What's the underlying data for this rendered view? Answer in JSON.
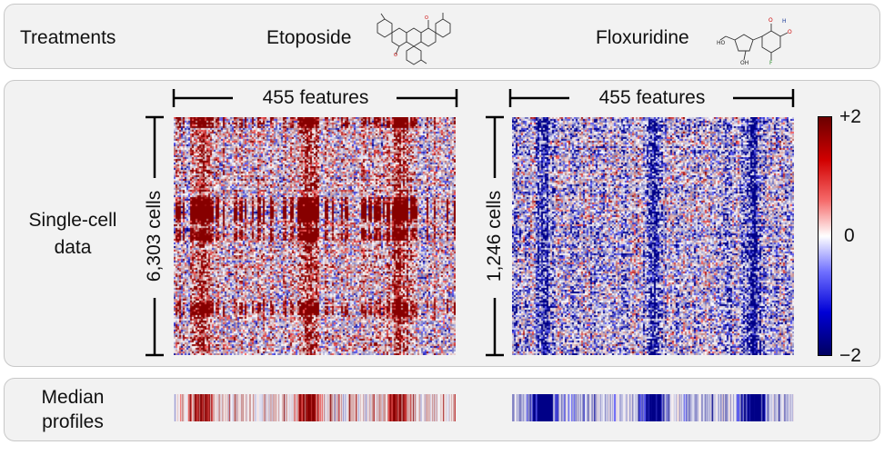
{
  "header": {
    "treatments_label": "Treatments",
    "drug_1": "Etoposide",
    "drug_2": "Floxuridine"
  },
  "single_cell": {
    "row_label_line1": "Single-cell",
    "row_label_line2": "data",
    "panel_1": {
      "features_label": "455 features",
      "cells_label": "6,303 cells",
      "seed": 7,
      "bands": [
        0.1,
        0.48,
        0.8
      ]
    },
    "panel_2": {
      "features_label": "455 features",
      "cells_label": "1,246 cells",
      "seed": 31,
      "bands": [
        0.11,
        0.5,
        0.85
      ]
    }
  },
  "median": {
    "row_label_line1": "Median",
    "row_label_line2": "profiles"
  },
  "colorbar": {
    "max_label": "+2",
    "mid_label": "0",
    "min_label": "−2",
    "colors": [
      "#6b0000",
      "#d10000",
      "#ffffff",
      "#0000d6",
      "#000060"
    ]
  }
}
